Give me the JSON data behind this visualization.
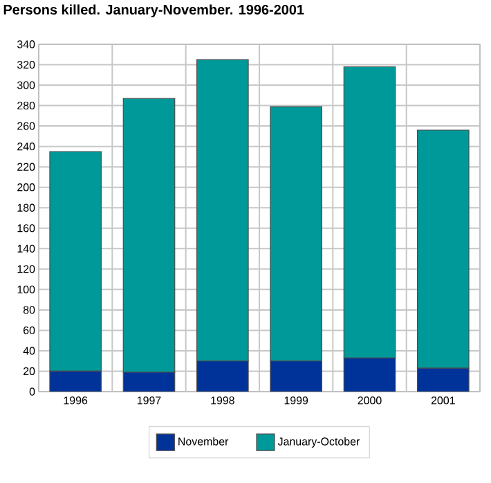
{
  "chart_data": {
    "type": "bar",
    "title": "Persons killed. January-November. 1996-2001",
    "categories": [
      "1996",
      "1997",
      "1998",
      "1999",
      "2000",
      "2001"
    ],
    "stacked": true,
    "series": [
      {
        "name": "November",
        "color": "#003399",
        "values": [
          20,
          19,
          30,
          30,
          33,
          23
        ]
      },
      {
        "name": "January-October",
        "color": "#009999",
        "values": [
          215,
          268,
          295,
          249,
          285,
          233
        ]
      }
    ],
    "ylim": [
      0,
      340
    ],
    "yticks": [
      0,
      20,
      40,
      60,
      80,
      100,
      120,
      140,
      160,
      180,
      200,
      220,
      240,
      260,
      280,
      300,
      320,
      340
    ],
    "grid": true,
    "legend": "bottom"
  }
}
